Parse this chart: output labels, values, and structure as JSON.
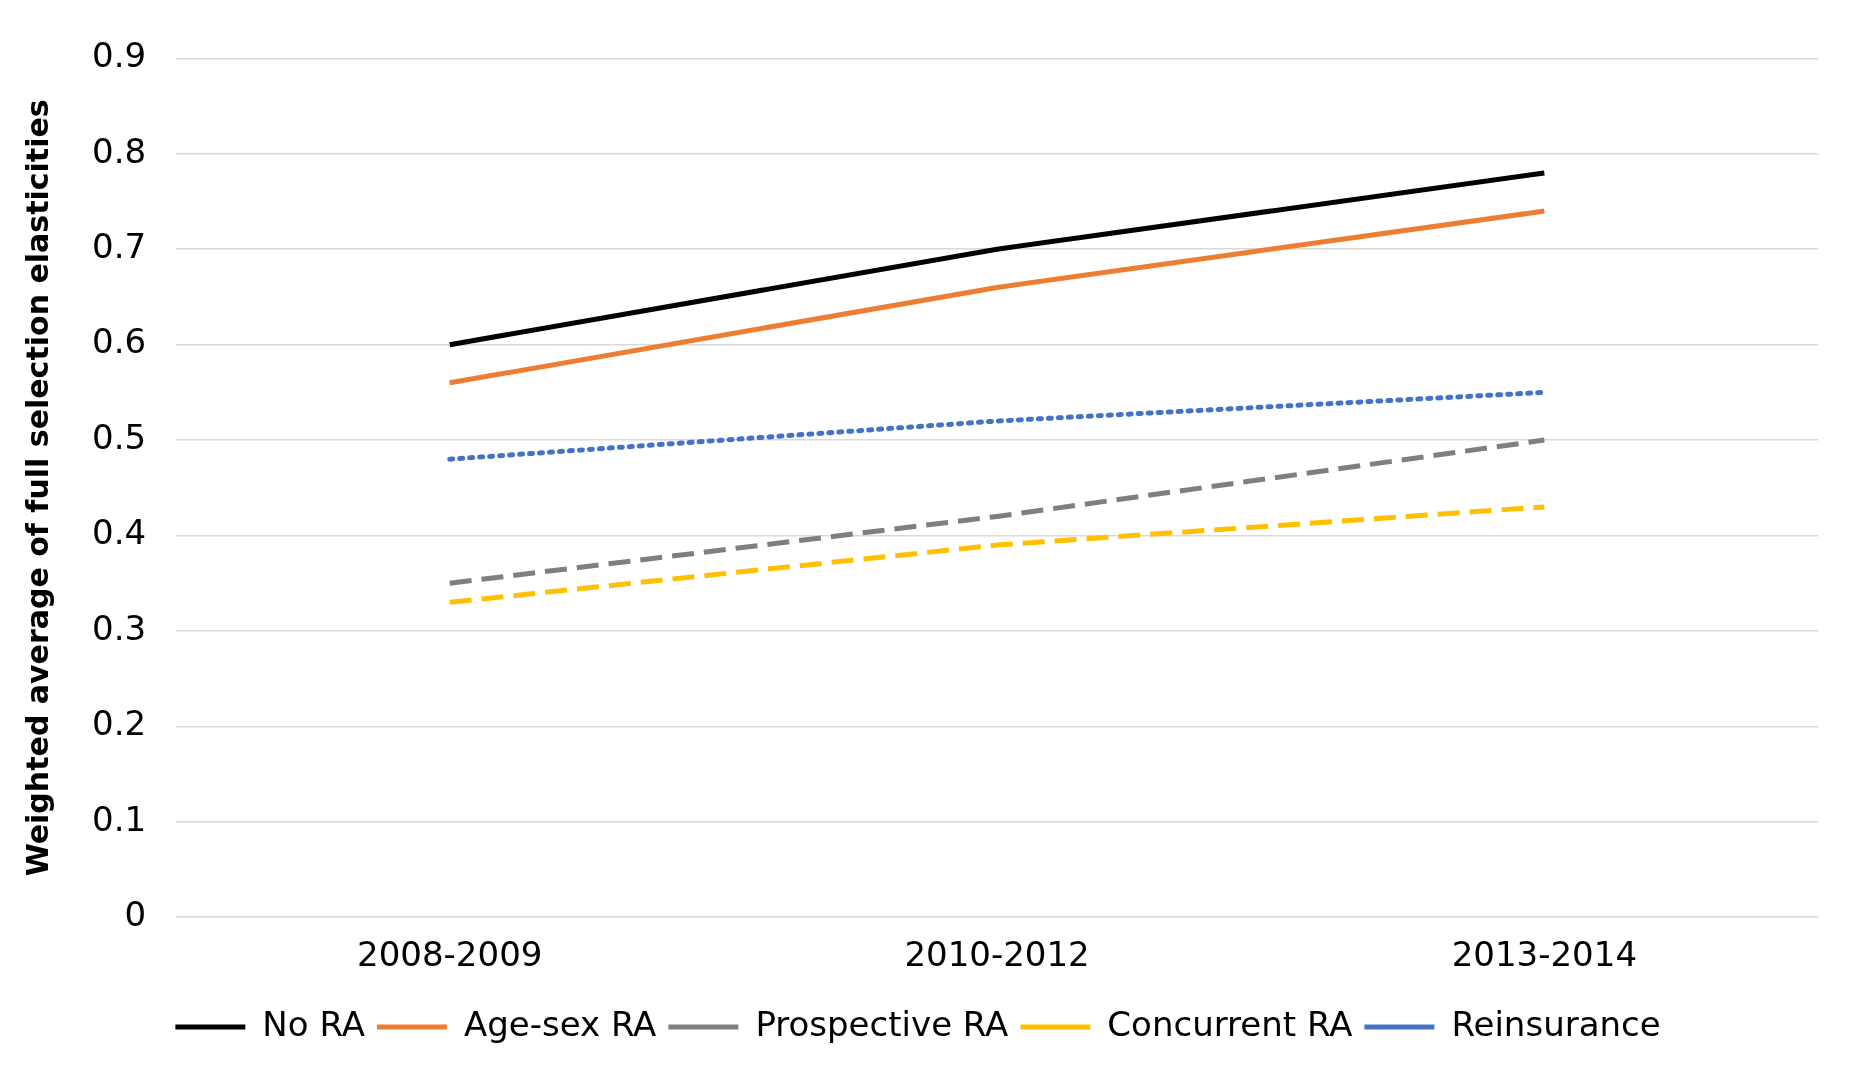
{
  "chart_data": {
    "type": "line",
    "ylabel": "Weighted average of full selection elasticities",
    "categories": [
      "2008-2009",
      "2010-2012",
      "2013-2014"
    ],
    "series": [
      {
        "name": "No RA",
        "color": "#000000",
        "line_style": "solid",
        "values": [
          0.6,
          0.7,
          0.78
        ]
      },
      {
        "name": "Age-sex RA",
        "color": "#ed7d31",
        "line_style": "solid",
        "values": [
          0.56,
          0.66,
          0.74
        ]
      },
      {
        "name": "Prospective RA",
        "color": "#7f7f7f",
        "line_style": "dashed",
        "values": [
          0.35,
          0.42,
          0.5
        ]
      },
      {
        "name": "Concurrent RA",
        "color": "#ffc000",
        "line_style": "dashed",
        "values": [
          0.33,
          0.39,
          0.43
        ]
      },
      {
        "name": "Reinsurance",
        "color": "#4472c4",
        "line_style": "dotted",
        "values": [
          0.48,
          0.52,
          0.55
        ]
      }
    ],
    "ylim": [
      0,
      0.9
    ],
    "yticks": [
      0,
      0.1,
      0.2,
      0.3,
      0.4,
      0.5,
      0.6,
      0.7,
      0.8,
      0.9
    ],
    "grid": "y",
    "legend": "bottom",
    "marker": "none"
  }
}
